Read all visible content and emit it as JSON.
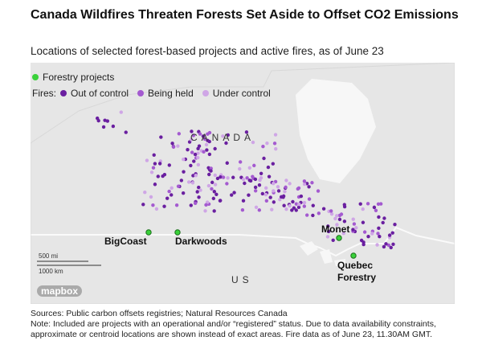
{
  "header": {
    "title": "Canada Wildfires Threaten Forests Set Aside to Offset CO2 Emissions",
    "subtitle": "Locations of selected forest-based projects and active fires, as of June 23"
  },
  "legend": {
    "projects": {
      "label": "Forestry projects",
      "color": "#3ad13a"
    },
    "fires_label": "Fires:",
    "fires": [
      {
        "label": "Out of control",
        "color": "#6a1fa0"
      },
      {
        "label": "Being held",
        "color": "#a45ad0"
      },
      {
        "label": "Under control",
        "color": "#cfa6e6"
      }
    ]
  },
  "map": {
    "country_labels": [
      "CANADA",
      "US"
    ],
    "projects": [
      "BigCoast",
      "Darkwoods",
      "Monet",
      "Quebec Forestry"
    ],
    "scale": [
      "500 mi",
      "1000 km"
    ],
    "attribution": "mapbox"
  },
  "footer": {
    "source": "Sources: Public carbon offsets registries; Natural Resources Canada",
    "note": "Note: Included are projects with an operational and/or “registered” status. Due to data availability constraints, approximate or centroid locations are shown instead of exact areas. Fire data as of June 23, 11.30AM GMT."
  }
}
